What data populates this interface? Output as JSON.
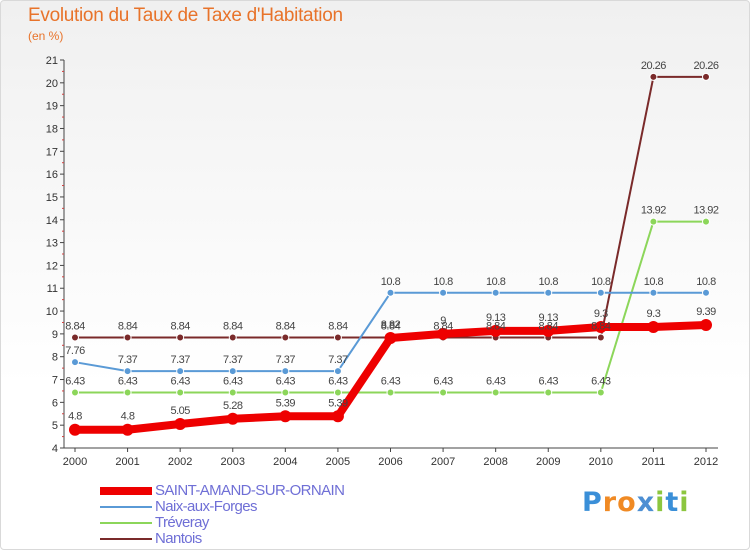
{
  "header": {
    "title": "Evolution du Taux de Taxe d'Habitation",
    "subtitle": "(en %)"
  },
  "brand": {
    "logo_letters": [
      "P",
      "r",
      "o",
      "x",
      "i",
      "t",
      "i"
    ],
    "logo_colors": [
      "#3a8fd8",
      "#f08a24",
      "#f08a24",
      "#4d8fd3",
      "#8cc63f",
      "#3a8fd8",
      "#8cc63f"
    ]
  },
  "chart_data": {
    "type": "line",
    "title": "Evolution du Taux de Taxe d'Habitation",
    "ylabel": "(en %)",
    "xlabel": "",
    "ylim": [
      4,
      21
    ],
    "yticks": [
      4,
      5,
      6,
      7,
      8,
      9,
      10,
      11,
      12,
      13,
      14,
      15,
      16,
      17,
      18,
      19,
      20,
      21
    ],
    "categories": [
      "2000",
      "2001",
      "2002",
      "2003",
      "2004",
      "2005",
      "2006",
      "2007",
      "2008",
      "2009",
      "2010",
      "2011",
      "2012"
    ],
    "grid": false,
    "legend_position": "bottom-left",
    "series": [
      {
        "name": "Nantois",
        "color": "#7a2a2a",
        "values": [
          8.84,
          8.84,
          8.84,
          8.84,
          8.84,
          8.84,
          8.84,
          8.84,
          8.84,
          8.84,
          8.84,
          20.26,
          20.26
        ],
        "labels": [
          "8.84",
          "8.84",
          "8.84",
          "8.84",
          "8.84",
          "8.84",
          "8.84",
          "8.84",
          "8.84",
          "8.84",
          "8.84",
          "20.26",
          "20.26"
        ]
      },
      {
        "name": "Tréveray",
        "color": "#8cd65a",
        "values": [
          6.43,
          6.43,
          6.43,
          6.43,
          6.43,
          6.43,
          6.43,
          6.43,
          6.43,
          6.43,
          6.43,
          13.92,
          13.92
        ],
        "labels": [
          "6.43",
          "6.43",
          "6.43",
          "6.43",
          "6.43",
          "6.43",
          "6.43",
          "6.43",
          "6.43",
          "6.43",
          "6.43",
          "13.92",
          "13.92"
        ]
      },
      {
        "name": "Naix-aux-Forges",
        "color": "#5a9ad6",
        "values": [
          7.76,
          7.37,
          7.37,
          7.37,
          7.37,
          7.37,
          10.8,
          10.8,
          10.8,
          10.8,
          10.8,
          10.8,
          10.8
        ],
        "labels": [
          "7.76",
          "7.37",
          "7.37",
          "7.37",
          "7.37",
          "7.37",
          "10.8",
          "10.8",
          "10.8",
          "10.8",
          "10.8",
          "10.8",
          "10.8"
        ]
      },
      {
        "name": "SAINT-AMAND-SUR-ORNAIN",
        "color": "#ee0000",
        "values": [
          4.8,
          4.8,
          5.05,
          5.28,
          5.39,
          5.39,
          8.82,
          9,
          9.13,
          9.13,
          9.3,
          9.3,
          9.39
        ],
        "labels": [
          "4.8",
          "4.8",
          "5.05",
          "5.28",
          "5.39",
          "5.39",
          "8.82",
          "9",
          "9.13",
          "9.13",
          "9.3",
          "9.3",
          "9.39"
        ]
      }
    ]
  }
}
